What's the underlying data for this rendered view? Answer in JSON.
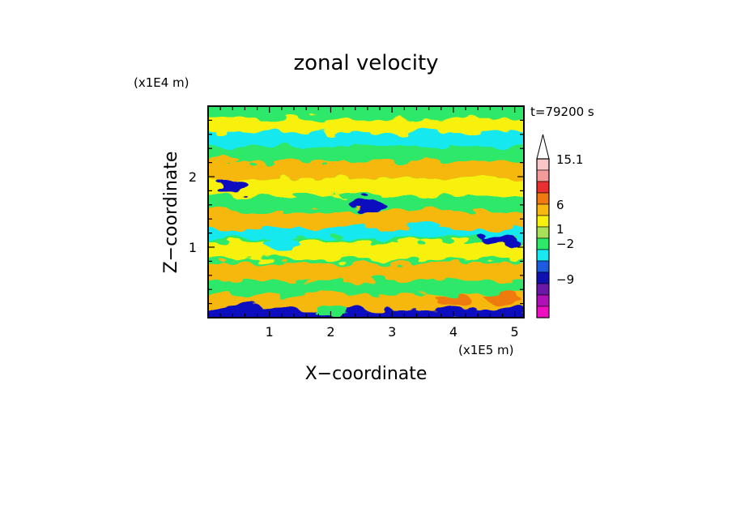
{
  "chart_data": {
    "type": "heatmap",
    "title": "zonal velocity",
    "xlabel": "X−coordinate",
    "ylabel": "Z−coordinate",
    "x_unit": "(x1E5 m)",
    "y_unit": "(x1E4 m)",
    "time_label": "t=79200 s",
    "xlim": [
      0,
      5.15
    ],
    "ylim": [
      0,
      3.0
    ],
    "x_ticks": [
      1,
      2,
      3,
      4,
      5
    ],
    "y_ticks": [
      1,
      2
    ],
    "x_tick_labels": [
      "1",
      "2",
      "3",
      "4",
      "5"
    ],
    "y_tick_labels": [
      "1",
      "2"
    ],
    "colorbar": {
      "labels": [
        {
          "text": "15.1",
          "value": 15.1
        },
        {
          "text": "6",
          "value": 6
        },
        {
          "text": "1",
          "value": 1
        },
        {
          "text": "−2",
          "value": -2
        },
        {
          "text": "−9",
          "value": -9
        }
      ],
      "levels": [
        {
          "color": "#f8c8c8",
          "label": ""
        },
        {
          "color": "#f39a9a",
          "label": ""
        },
        {
          "color": "#e83030",
          "label": ""
        },
        {
          "color": "#ef7a10",
          "label": ""
        },
        {
          "color": "#f7b80f",
          "label": ""
        },
        {
          "color": "#f7f10f",
          "label": ""
        },
        {
          "color": "#a8e05a",
          "label": ""
        },
        {
          "color": "#2ee86a",
          "label": ""
        },
        {
          "color": "#18e8f0",
          "label": ""
        },
        {
          "color": "#1c5be0",
          "label": ""
        },
        {
          "color": "#1010b0",
          "label": ""
        },
        {
          "color": "#6a18a8",
          "label": ""
        },
        {
          "color": "#b010b8",
          "label": ""
        },
        {
          "color": "#ee10c0",
          "label": ""
        }
      ]
    },
    "field_bands": [
      {
        "z": 0.08,
        "class": "blue"
      },
      {
        "z": 0.25,
        "class": "orange"
      },
      {
        "z": 0.45,
        "class": "green"
      },
      {
        "z": 0.65,
        "class": "orange"
      },
      {
        "z": 0.95,
        "class": "yellow"
      },
      {
        "z": 1.25,
        "class": "cyan"
      },
      {
        "z": 1.4,
        "class": "orange"
      },
      {
        "z": 1.65,
        "class": "green"
      },
      {
        "z": 1.85,
        "class": "yellow"
      },
      {
        "z": 2.1,
        "class": "orange"
      },
      {
        "z": 2.35,
        "class": "green"
      },
      {
        "z": 2.55,
        "class": "cyan"
      },
      {
        "z": 2.75,
        "class": "yellow"
      },
      {
        "z": 2.95,
        "class": "green"
      }
    ],
    "field_colors": {
      "blue": "#1010c0",
      "cyan": "#18e8f0",
      "green": "#2ee86a",
      "yellow": "#f7f10f",
      "orange": "#f7b80f",
      "red": "#ef7a10"
    },
    "blobs": [
      {
        "x": 0.6,
        "z": 0.12,
        "class": "blue"
      },
      {
        "x": 2.0,
        "z": 0.1,
        "class": "green"
      },
      {
        "x": 4.0,
        "z": 0.25,
        "class": "red"
      },
      {
        "x": 4.8,
        "z": 0.28,
        "class": "red"
      },
      {
        "x": 2.6,
        "z": 1.6,
        "class": "blue"
      },
      {
        "x": 4.75,
        "z": 1.1,
        "class": "blue"
      },
      {
        "x": 0.4,
        "z": 1.85,
        "class": "blue"
      },
      {
        "x": 3.5,
        "z": 1.3,
        "class": "cyan"
      },
      {
        "x": 1.2,
        "z": 1.05,
        "class": "cyan"
      },
      {
        "x": 0.3,
        "z": 2.0,
        "class": "orange"
      }
    ]
  }
}
